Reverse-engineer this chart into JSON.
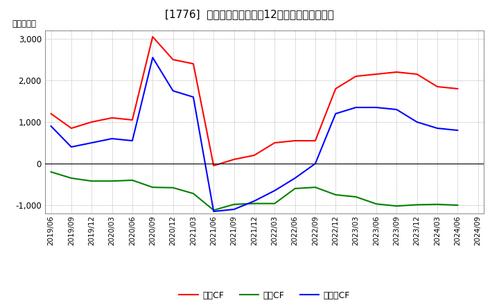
{
  "title": "[1776]  キャッシュフローの12か月移動合計の推移",
  "ylabel": "（百万円）",
  "background_color": "#ffffff",
  "plot_bg_color": "#ffffff",
  "grid_color": "#aaaaaa",
  "ylim": [
    -1200,
    3200
  ],
  "yticks": [
    -1000,
    0,
    1000,
    2000,
    3000
  ],
  "x_labels": [
    "2019/06",
    "2019/09",
    "2019/12",
    "2020/03",
    "2020/06",
    "2020/09",
    "2020/12",
    "2021/03",
    "2021/06",
    "2021/09",
    "2021/12",
    "2022/03",
    "2022/06",
    "2022/09",
    "2022/12",
    "2023/03",
    "2023/06",
    "2023/09",
    "2023/12",
    "2024/03",
    "2024/06",
    "2024/09"
  ],
  "operating_cf": [
    1200,
    850,
    1000,
    1100,
    1050,
    3050,
    2500,
    2400,
    -50,
    100,
    200,
    500,
    550,
    550,
    1800,
    2100,
    2150,
    2200,
    2150,
    1850,
    1800,
    null
  ],
  "investing_cf": [
    -200,
    -350,
    -420,
    -420,
    -400,
    -570,
    -580,
    -720,
    -1120,
    -980,
    -960,
    -960,
    -600,
    -570,
    -750,
    -800,
    -970,
    -1020,
    -990,
    -980,
    -1000,
    null
  ],
  "free_cf": [
    900,
    400,
    500,
    600,
    550,
    2550,
    1750,
    1600,
    -1150,
    -1100,
    -900,
    -650,
    -350,
    0,
    1200,
    1350,
    1350,
    1300,
    1000,
    850,
    800,
    null
  ],
  "line_colors": {
    "operating": "#ff0000",
    "investing": "#008000",
    "free": "#0000ff"
  },
  "legend_labels": [
    "営業CF",
    "投資CF",
    "フリーCF"
  ]
}
